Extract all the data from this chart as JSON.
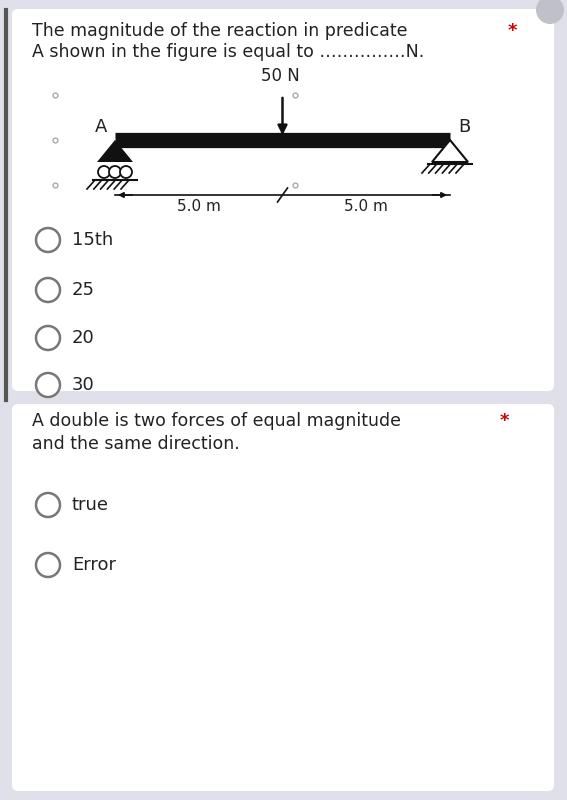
{
  "bg_outer": "#e0e0ea",
  "bg_card1": "#ffffff",
  "bg_card2": "#ffffff",
  "card1_title_line1": "The magnitude of the reaction in predicate",
  "card1_title_line2": "A shown in the figure is equal to ……………N.",
  "star_color": "#cc0000",
  "beam_color": "#111111",
  "label_A": "A",
  "label_B": "B",
  "force_label": "50 N",
  "dist_label_left": "5.0 m",
  "dist_label_right": "5.0 m",
  "options_q1": [
    "15th",
    "25",
    "20",
    "30"
  ],
  "card2_title_line1": "A double is two forces of equal magnitude",
  "card2_title_line2": "and the same direction.",
  "options_q2": [
    "true",
    "Error"
  ],
  "radio_color": "#777777",
  "text_color": "#222222",
  "small_circle_color": "#aaaaaa"
}
